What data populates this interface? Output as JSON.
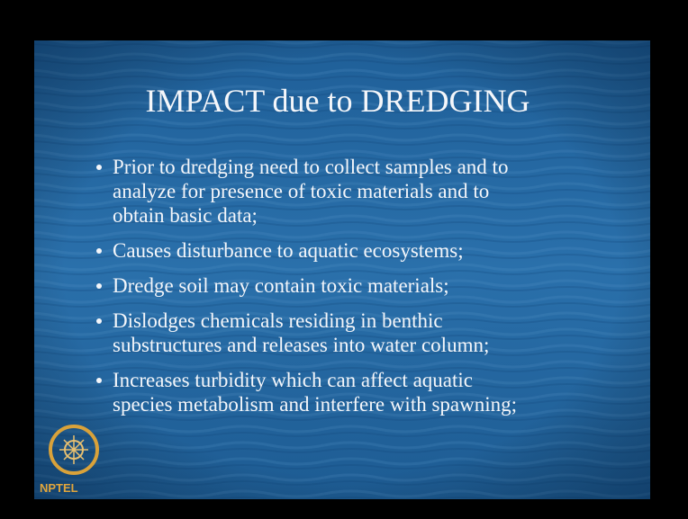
{
  "slide": {
    "title": "IMPACT due to DREDGING",
    "bullets": [
      [
        "Prior to dredging need to collect samples and to",
        "analyze for presence of toxic materials and to",
        "obtain basic data;"
      ],
      [
        "Causes disturbance to aquatic ecosystems;"
      ],
      [
        "Dredge soil may contain toxic materials;"
      ],
      [
        "Dislodges chemicals residing in benthic",
        "substructures and releases into water column;"
      ],
      [
        "Increases turbidity which can affect aquatic",
        "species metabolism and interfere with spawning;"
      ]
    ],
    "logo_text": "NPTEL"
  }
}
